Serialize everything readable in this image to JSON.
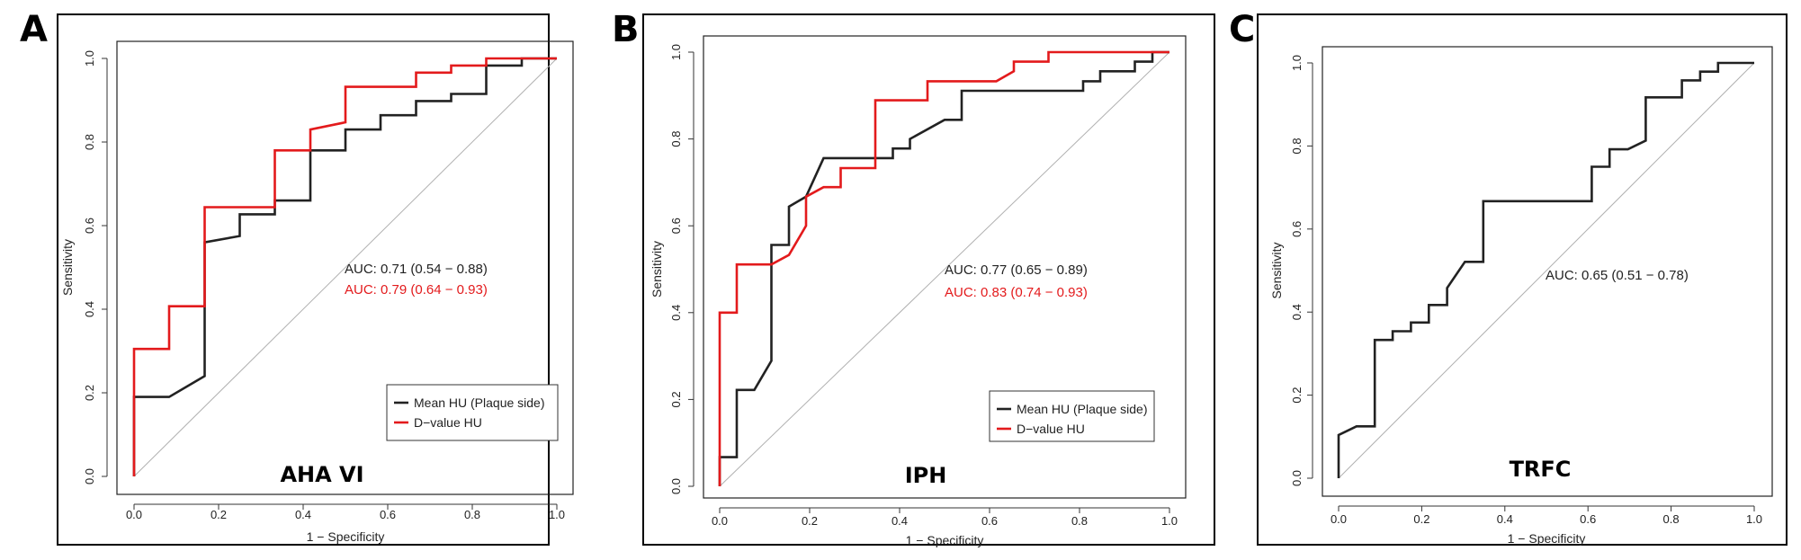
{
  "chart_data": [
    {
      "panel": "A",
      "type": "line",
      "subtitle": "AHA VI",
      "xlabel": "1 − Specificity",
      "ylabel": "Sensitivity",
      "xlim": [
        0,
        1
      ],
      "ylim": [
        0,
        1
      ],
      "xticks": [
        "0.0",
        "0.2",
        "0.4",
        "0.6",
        "0.8",
        "1.0"
      ],
      "yticks": [
        "0.0",
        "0.2",
        "0.4",
        "0.6",
        "0.8",
        "1.0"
      ],
      "series": [
        {
          "name": "Mean HU (Plaque side)",
          "color": "#222222",
          "auc_label": "AUC: 0.71 (0.54 − 0.88)",
          "points": [
            [
              0,
              0
            ],
            [
              0,
              0.19
            ],
            [
              0.083,
              0.19
            ],
            [
              0.167,
              0.24
            ],
            [
              0.167,
              0.56
            ],
            [
              0.25,
              0.575
            ],
            [
              0.25,
              0.627
            ],
            [
              0.333,
              0.627
            ],
            [
              0.333,
              0.66
            ],
            [
              0.417,
              0.66
            ],
            [
              0.417,
              0.78
            ],
            [
              0.5,
              0.78
            ],
            [
              0.5,
              0.83
            ],
            [
              0.583,
              0.83
            ],
            [
              0.583,
              0.864
            ],
            [
              0.667,
              0.864
            ],
            [
              0.667,
              0.898
            ],
            [
              0.75,
              0.898
            ],
            [
              0.75,
              0.915
            ],
            [
              0.833,
              0.915
            ],
            [
              0.833,
              0.983
            ],
            [
              0.917,
              0.983
            ],
            [
              0.917,
              1
            ],
            [
              1,
              1
            ]
          ]
        },
        {
          "name": "D−value HU",
          "color": "#e31a1c",
          "auc_label": "AUC: 0.79 (0.64 − 0.93)",
          "points": [
            [
              0,
              0
            ],
            [
              0,
              0.305
            ],
            [
              0.083,
              0.305
            ],
            [
              0.083,
              0.407
            ],
            [
              0.167,
              0.407
            ],
            [
              0.167,
              0.644
            ],
            [
              0.333,
              0.644
            ],
            [
              0.333,
              0.78
            ],
            [
              0.417,
              0.78
            ],
            [
              0.417,
              0.83
            ],
            [
              0.5,
              0.847
            ],
            [
              0.5,
              0.932
            ],
            [
              0.667,
              0.932
            ],
            [
              0.667,
              0.966
            ],
            [
              0.75,
              0.966
            ],
            [
              0.75,
              0.983
            ],
            [
              0.833,
              0.983
            ],
            [
              0.833,
              1
            ],
            [
              1,
              1
            ]
          ]
        }
      ],
      "legend": true
    },
    {
      "panel": "B",
      "type": "line",
      "subtitle": "IPH",
      "xlabel": "1 − Specificity",
      "ylabel": "Sensitivity",
      "xlim": [
        0,
        1
      ],
      "ylim": [
        0,
        1
      ],
      "xticks": [
        "0.0",
        "0.2",
        "0.4",
        "0.6",
        "0.8",
        "1.0"
      ],
      "yticks": [
        "0.0",
        "0.2",
        "0.4",
        "0.6",
        "0.8",
        "1.0"
      ],
      "series": [
        {
          "name": "Mean HU (Plaque side)",
          "color": "#222222",
          "auc_label": "AUC: 0.77 (0.65 − 0.89)",
          "points": [
            [
              0,
              0
            ],
            [
              0,
              0.067
            ],
            [
              0.038,
              0.067
            ],
            [
              0.038,
              0.222
            ],
            [
              0.077,
              0.222
            ],
            [
              0.115,
              0.289
            ],
            [
              0.115,
              0.556
            ],
            [
              0.154,
              0.556
            ],
            [
              0.154,
              0.644
            ],
            [
              0.192,
              0.667
            ],
            [
              0.231,
              0.756
            ],
            [
              0.385,
              0.756
            ],
            [
              0.385,
              0.778
            ],
            [
              0.423,
              0.778
            ],
            [
              0.423,
              0.8
            ],
            [
              0.5,
              0.844
            ],
            [
              0.538,
              0.844
            ],
            [
              0.538,
              0.911
            ],
            [
              0.808,
              0.911
            ],
            [
              0.808,
              0.933
            ],
            [
              0.846,
              0.933
            ],
            [
              0.846,
              0.956
            ],
            [
              0.923,
              0.956
            ],
            [
              0.923,
              0.978
            ],
            [
              0.962,
              0.978
            ],
            [
              0.962,
              1
            ],
            [
              1,
              1
            ]
          ]
        },
        {
          "name": "D−value HU",
          "color": "#e31a1c",
          "auc_label": "AUC: 0.83 (0.74 − 0.93)",
          "points": [
            [
              0,
              0
            ],
            [
              0,
              0.4
            ],
            [
              0.038,
              0.4
            ],
            [
              0.038,
              0.511
            ],
            [
              0.115,
              0.511
            ],
            [
              0.154,
              0.533
            ],
            [
              0.192,
              0.6
            ],
            [
              0.192,
              0.667
            ],
            [
              0.231,
              0.689
            ],
            [
              0.269,
              0.689
            ],
            [
              0.269,
              0.733
            ],
            [
              0.346,
              0.733
            ],
            [
              0.346,
              0.889
            ],
            [
              0.462,
              0.889
            ],
            [
              0.462,
              0.933
            ],
            [
              0.615,
              0.933
            ],
            [
              0.654,
              0.956
            ],
            [
              0.654,
              0.978
            ],
            [
              0.731,
              0.978
            ],
            [
              0.731,
              1
            ],
            [
              1,
              1
            ]
          ]
        }
      ],
      "legend": true
    },
    {
      "panel": "C",
      "type": "line",
      "subtitle": "TRFC",
      "xlabel": "1 − Specificity",
      "ylabel": "Sensitivity",
      "xlim": [
        0,
        1
      ],
      "ylim": [
        0,
        1
      ],
      "xticks": [
        "0.0",
        "0.2",
        "0.4",
        "0.6",
        "0.8",
        "1.0"
      ],
      "yticks": [
        "0.0",
        "0.2",
        "0.4",
        "0.6",
        "0.8",
        "1.0"
      ],
      "series": [
        {
          "name": "TRFC",
          "color": "#222222",
          "auc_label": "AUC: 0.65 (0.51 − 0.78)",
          "points": [
            [
              0,
              0
            ],
            [
              0,
              0.104
            ],
            [
              0.043,
              0.125
            ],
            [
              0.087,
              0.125
            ],
            [
              0.087,
              0.333
            ],
            [
              0.13,
              0.333
            ],
            [
              0.13,
              0.354
            ],
            [
              0.174,
              0.354
            ],
            [
              0.174,
              0.375
            ],
            [
              0.217,
              0.375
            ],
            [
              0.217,
              0.417
            ],
            [
              0.261,
              0.417
            ],
            [
              0.261,
              0.458
            ],
            [
              0.304,
              0.521
            ],
            [
              0.348,
              0.521
            ],
            [
              0.348,
              0.667
            ],
            [
              0.609,
              0.667
            ],
            [
              0.609,
              0.75
            ],
            [
              0.652,
              0.75
            ],
            [
              0.652,
              0.792
            ],
            [
              0.696,
              0.792
            ],
            [
              0.739,
              0.813
            ],
            [
              0.739,
              0.917
            ],
            [
              0.826,
              0.917
            ],
            [
              0.826,
              0.958
            ],
            [
              0.87,
              0.958
            ],
            [
              0.87,
              0.979
            ],
            [
              0.913,
              0.979
            ],
            [
              0.913,
              1
            ],
            [
              1,
              1
            ]
          ]
        }
      ],
      "legend": false
    }
  ]
}
